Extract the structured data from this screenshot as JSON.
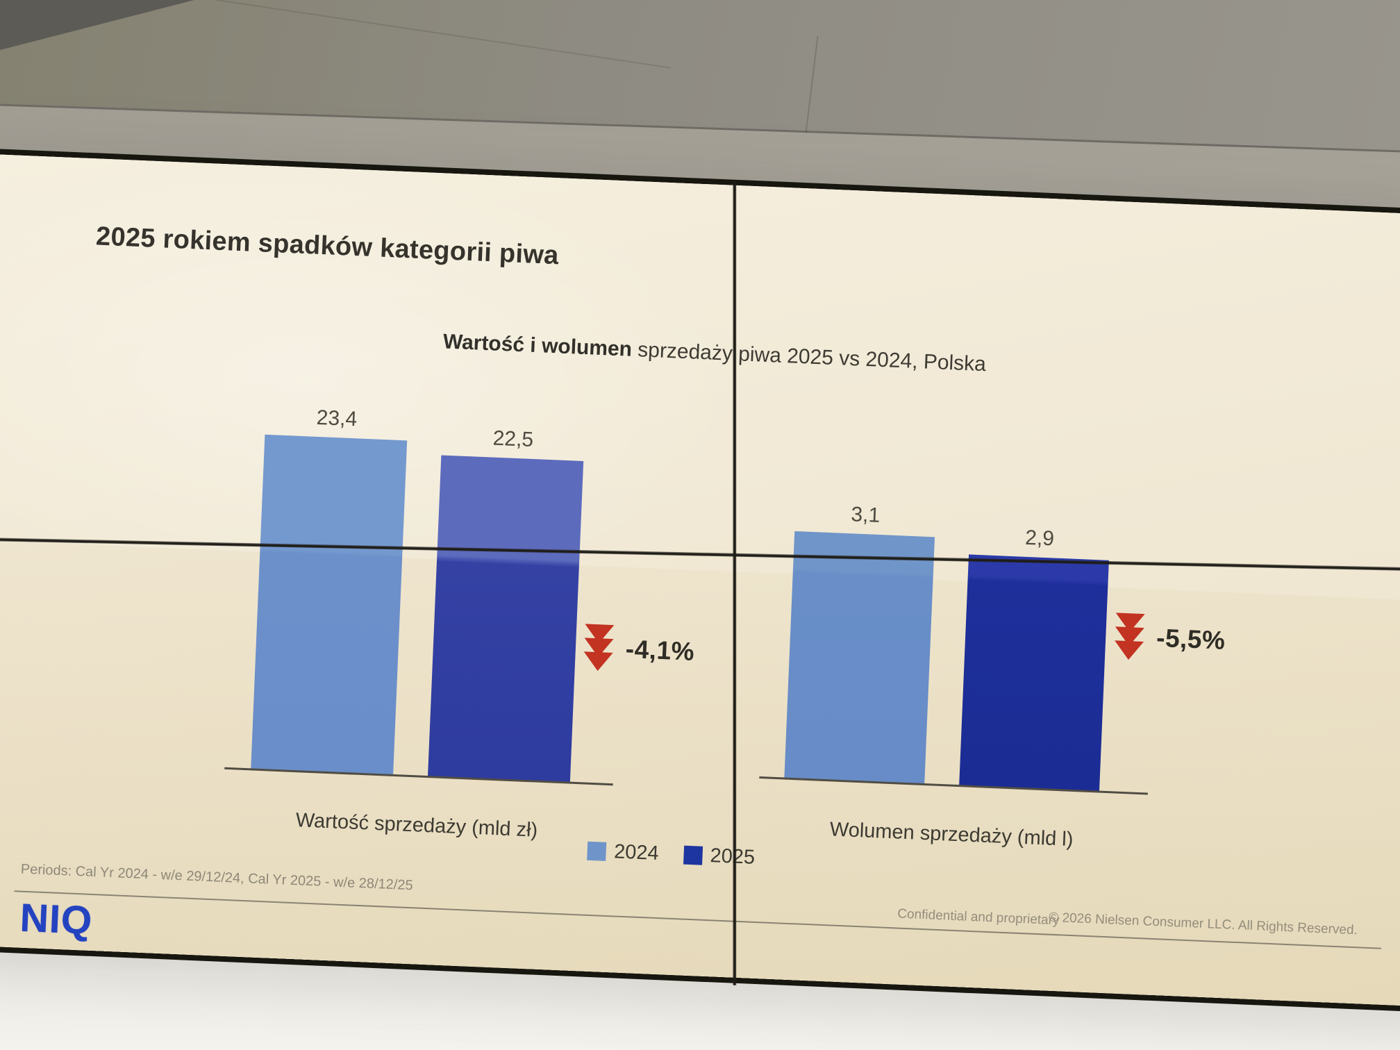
{
  "slide": {
    "title": "2025 rokiem spadków kategorii piwa",
    "subtitle_bold": "Wartość i wolumen",
    "subtitle_rest": " sprzedaży piwa 2025 vs 2024, Polska",
    "footnote": "Periods: Cal Yr 2024 - w/e 29/12/24, Cal Yr 2025 - w/e 28/12/25",
    "logo_text": "NIQ",
    "footer_confidential": "Confidential and proprietary",
    "footer_copyright": "© 2026 Nielsen Consumer LLC. All Rights Reserved."
  },
  "chart_data": {
    "type": "bar",
    "title": "Wartość i wolumen sprzedaży piwa 2025 vs 2024, Polska",
    "grid": false,
    "value_labels": true,
    "legend_position": "bottom-center",
    "legend": [
      {
        "label": "2024",
        "color": "#6f94ca"
      },
      {
        "label": "2025",
        "color": "#1d35a0"
      }
    ],
    "colors": {
      "series_2024": "#7095cb",
      "series_2025": "#2035a0",
      "decline_arrow": "#c23322"
    },
    "groups": [
      {
        "label": "Wartość sprzedaży (mld zł)",
        "bars": [
          {
            "series": "2024",
            "value": 23.4,
            "label": "23,4"
          },
          {
            "series": "2025",
            "value": 22.5,
            "label": "22,5"
          }
        ],
        "change": {
          "label": "-4,1%",
          "value": -4.1,
          "direction": "down"
        }
      },
      {
        "label": "Wolumen sprzedaży (mld l)",
        "bars": [
          {
            "series": "2024",
            "value": 3.1,
            "label": "3,1"
          },
          {
            "series": "2025",
            "value": 2.9,
            "label": "2,9"
          }
        ],
        "change": {
          "label": "-5,5%",
          "value": -5.5,
          "direction": "down"
        }
      }
    ]
  }
}
